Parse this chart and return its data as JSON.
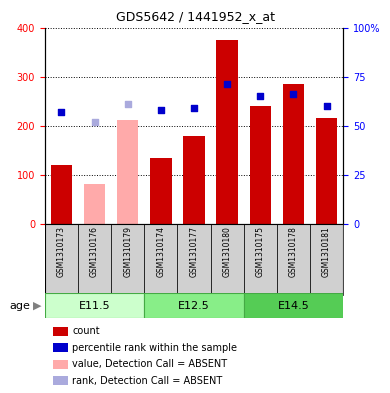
{
  "title": "GDS5642 / 1441952_x_at",
  "samples": [
    "GSM1310173",
    "GSM1310176",
    "GSM1310179",
    "GSM1310174",
    "GSM1310177",
    "GSM1310180",
    "GSM1310175",
    "GSM1310178",
    "GSM1310181"
  ],
  "count_values": [
    120,
    0,
    0,
    135,
    180,
    375,
    240,
    285,
    215
  ],
  "count_absent": [
    0,
    82,
    212,
    0,
    0,
    0,
    0,
    0,
    0
  ],
  "percentile_values": [
    57,
    0,
    0,
    58,
    59,
    71,
    65,
    66,
    60
  ],
  "percentile_absent": [
    0,
    52,
    61,
    0,
    0,
    0,
    0,
    0,
    0
  ],
  "absent_flags": [
    false,
    true,
    true,
    false,
    false,
    false,
    false,
    false,
    false
  ],
  "age_groups": [
    {
      "label": "E11.5",
      "start": 0,
      "end": 3,
      "color": "#ccffcc"
    },
    {
      "label": "E12.5",
      "start": 3,
      "end": 6,
      "color": "#88ee88"
    },
    {
      "label": "E14.5",
      "start": 6,
      "end": 9,
      "color": "#55dd55"
    }
  ],
  "bar_color_present": "#cc0000",
  "bar_color_absent": "#ffaaaa",
  "dot_color_present": "#0000cc",
  "dot_color_absent": "#aaaadd",
  "ylim_left": [
    0,
    400
  ],
  "ylim_right": [
    0,
    100
  ],
  "yticks_left": [
    0,
    100,
    200,
    300,
    400
  ],
  "yticks_right": [
    0,
    25,
    50,
    75,
    100
  ],
  "ytick_labels_right": [
    "0",
    "25",
    "50",
    "75",
    "100%"
  ],
  "sample_bg_color": "#d0d0d0",
  "legend_items": [
    {
      "label": "count",
      "color": "#cc0000"
    },
    {
      "label": "percentile rank within the sample",
      "color": "#0000cc"
    },
    {
      "label": "value, Detection Call = ABSENT",
      "color": "#ffaaaa"
    },
    {
      "label": "rank, Detection Call = ABSENT",
      "color": "#aaaadd"
    }
  ],
  "fig_width": 3.9,
  "fig_height": 3.93,
  "dpi": 100
}
